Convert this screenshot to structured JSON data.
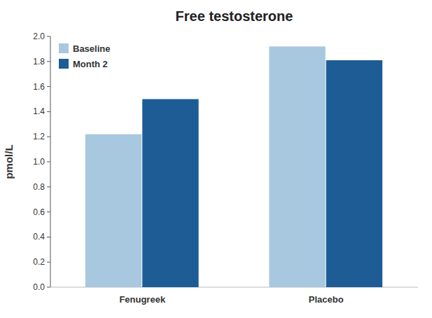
{
  "chart_data": {
    "type": "bar",
    "title": "Free testosterone",
    "ylabel": "pmol/L",
    "categories": [
      "Fenugreek",
      "Placebo"
    ],
    "series": [
      {
        "name": "Baseline",
        "color": "#a8c8e0",
        "values": [
          1.22,
          1.92
        ]
      },
      {
        "name": "Month 2",
        "color": "#1e5c96",
        "values": [
          1.5,
          1.81
        ]
      }
    ],
    "ylim": [
      0,
      2.0
    ],
    "yticks": [
      {
        "value": 0,
        "label": "0.0"
      },
      0.2,
      0.4,
      0.6,
      0.8,
      {
        "value": 1.0,
        "label": "1.0"
      },
      1.2,
      1.4,
      1.6,
      1.8,
      {
        "value": 2,
        "label": "2.0"
      }
    ],
    "grid": false,
    "legend": "upper left"
  }
}
